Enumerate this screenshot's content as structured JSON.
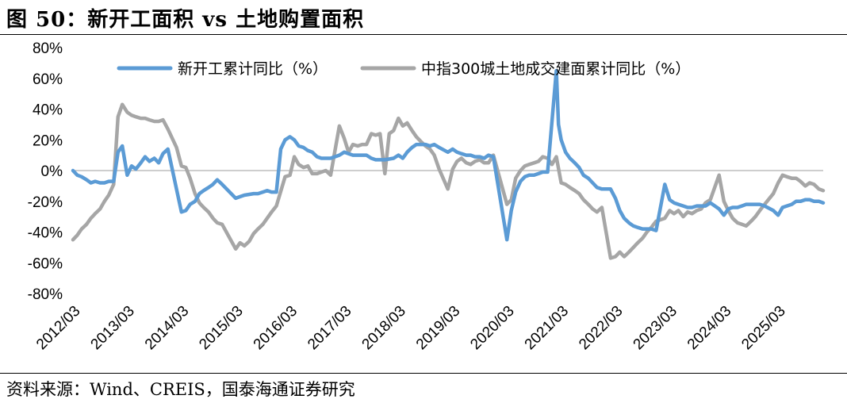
{
  "title": "图 50：新开工面积 vs 土地购置面积",
  "source": "资料来源：Wind、CREIS，国泰海通证券研究",
  "chart_data": {
    "type": "line",
    "y_axis": {
      "min": -80,
      "max": 80,
      "step": 20,
      "unit": "%",
      "tick_labels": [
        "80%",
        "60%",
        "40%",
        "20%",
        "0%",
        "-20%",
        "-40%",
        "-60%",
        "-80%"
      ]
    },
    "x_axis": {
      "tick_labels": [
        "2012/03",
        "2013/03",
        "2014/03",
        "2015/03",
        "2016/03",
        "2017/03",
        "2018/03",
        "2019/03",
        "2020/03",
        "2021/03",
        "2022/03",
        "2023/03",
        "2024/03",
        "2025/03"
      ]
    },
    "legend_position": "top",
    "series": [
      {
        "name": "新开工累计同比（%）",
        "color": "#5b9bd5",
        "points": [
          [
            2012.17,
            0
          ],
          [
            2012.25,
            -3
          ],
          [
            2012.33,
            -4
          ],
          [
            2012.42,
            -6
          ],
          [
            2012.5,
            -8
          ],
          [
            2012.58,
            -7
          ],
          [
            2012.67,
            -8
          ],
          [
            2012.75,
            -8
          ],
          [
            2012.83,
            -7
          ],
          [
            2012.92,
            -7
          ],
          [
            2013.0,
            12
          ],
          [
            2013.08,
            16
          ],
          [
            2013.17,
            -3
          ],
          [
            2013.25,
            3
          ],
          [
            2013.33,
            1
          ],
          [
            2013.42,
            5
          ],
          [
            2013.5,
            9
          ],
          [
            2013.58,
            6
          ],
          [
            2013.67,
            8
          ],
          [
            2013.75,
            5
          ],
          [
            2013.83,
            11
          ],
          [
            2013.92,
            14
          ],
          [
            2014.17,
            -27
          ],
          [
            2014.25,
            -26
          ],
          [
            2014.33,
            -22
          ],
          [
            2014.42,
            -20
          ],
          [
            2014.5,
            -15
          ],
          [
            2014.58,
            -13
          ],
          [
            2014.67,
            -11
          ],
          [
            2014.75,
            -9
          ],
          [
            2014.83,
            -6
          ],
          [
            2014.92,
            -9
          ],
          [
            2015.17,
            -18
          ],
          [
            2015.25,
            -17
          ],
          [
            2015.33,
            -16
          ],
          [
            2015.5,
            -15
          ],
          [
            2015.58,
            -15
          ],
          [
            2015.67,
            -14
          ],
          [
            2015.75,
            -13
          ],
          [
            2015.83,
            -14
          ],
          [
            2015.92,
            -14
          ],
          [
            2016.0,
            14
          ],
          [
            2016.08,
            20
          ],
          [
            2016.17,
            22
          ],
          [
            2016.25,
            20
          ],
          [
            2016.33,
            16
          ],
          [
            2016.42,
            15
          ],
          [
            2016.5,
            13
          ],
          [
            2016.58,
            12
          ],
          [
            2016.67,
            9
          ],
          [
            2016.75,
            8
          ],
          [
            2016.83,
            8
          ],
          [
            2016.92,
            8
          ],
          [
            2017.08,
            10
          ],
          [
            2017.17,
            12
          ],
          [
            2017.25,
            11
          ],
          [
            2017.33,
            10
          ],
          [
            2017.5,
            10
          ],
          [
            2017.58,
            10
          ],
          [
            2017.67,
            8
          ],
          [
            2017.75,
            7
          ],
          [
            2017.83,
            7
          ],
          [
            2017.92,
            7
          ],
          [
            2018.08,
            8
          ],
          [
            2018.17,
            10
          ],
          [
            2018.25,
            8
          ],
          [
            2018.33,
            12
          ],
          [
            2018.42,
            15
          ],
          [
            2018.5,
            17
          ],
          [
            2018.58,
            17
          ],
          [
            2018.67,
            17
          ],
          [
            2018.75,
            16
          ],
          [
            2018.83,
            17
          ],
          [
            2018.92,
            15
          ],
          [
            2019.08,
            12
          ],
          [
            2019.17,
            14
          ],
          [
            2019.25,
            12
          ],
          [
            2019.33,
            11
          ],
          [
            2019.42,
            10
          ],
          [
            2019.5,
            10
          ],
          [
            2019.58,
            9
          ],
          [
            2019.67,
            9
          ],
          [
            2019.75,
            8
          ],
          [
            2019.83,
            10
          ],
          [
            2019.92,
            9
          ],
          [
            2020.17,
            -45
          ],
          [
            2020.25,
            -26
          ],
          [
            2020.33,
            -14
          ],
          [
            2020.42,
            -7
          ],
          [
            2020.5,
            -4
          ],
          [
            2020.58,
            -3
          ],
          [
            2020.67,
            -3
          ],
          [
            2020.75,
            -2
          ],
          [
            2020.83,
            -1
          ],
          [
            2020.92,
            -1
          ],
          [
            2021.08,
            65
          ],
          [
            2021.12,
            30
          ],
          [
            2021.17,
            20
          ],
          [
            2021.25,
            12
          ],
          [
            2021.33,
            8
          ],
          [
            2021.42,
            5
          ],
          [
            2021.5,
            2
          ],
          [
            2021.58,
            -3
          ],
          [
            2021.67,
            -5
          ],
          [
            2021.75,
            -8
          ],
          [
            2021.83,
            -11
          ],
          [
            2021.92,
            -12
          ],
          [
            2022.08,
            -12
          ],
          [
            2022.17,
            -18
          ],
          [
            2022.25,
            -26
          ],
          [
            2022.33,
            -31
          ],
          [
            2022.42,
            -34
          ],
          [
            2022.5,
            -36
          ],
          [
            2022.58,
            -37
          ],
          [
            2022.67,
            -38
          ],
          [
            2022.75,
            -38
          ],
          [
            2022.83,
            -38
          ],
          [
            2022.92,
            -39
          ],
          [
            2023.08,
            -9
          ],
          [
            2023.17,
            -19
          ],
          [
            2023.25,
            -21
          ],
          [
            2023.33,
            -22
          ],
          [
            2023.42,
            -23
          ],
          [
            2023.5,
            -24
          ],
          [
            2023.58,
            -24
          ],
          [
            2023.67,
            -23
          ],
          [
            2023.75,
            -23
          ],
          [
            2023.83,
            -23
          ],
          [
            2023.92,
            -21
          ],
          [
            2024.08,
            -25
          ],
          [
            2024.17,
            -29
          ],
          [
            2024.25,
            -25
          ],
          [
            2024.33,
            -24
          ],
          [
            2024.42,
            -24
          ],
          [
            2024.5,
            -23
          ],
          [
            2024.58,
            -22
          ],
          [
            2024.67,
            -22
          ],
          [
            2024.75,
            -22
          ],
          [
            2024.83,
            -22
          ],
          [
            2024.92,
            -23
          ],
          [
            2025.08,
            -26
          ],
          [
            2025.17,
            -29
          ],
          [
            2025.25,
            -24
          ],
          [
            2025.33,
            -23
          ],
          [
            2025.42,
            -22
          ],
          [
            2025.5,
            -20
          ],
          [
            2025.58,
            -20
          ],
          [
            2025.67,
            -19
          ],
          [
            2025.75,
            -19
          ],
          [
            2025.83,
            -20
          ],
          [
            2025.92,
            -20
          ],
          [
            2026.0,
            -21
          ]
        ]
      },
      {
        "name": "中指300城土地成交建面累计同比（%）",
        "color": "#a6a6a6",
        "points": [
          [
            2012.17,
            -45
          ],
          [
            2012.25,
            -42
          ],
          [
            2012.33,
            -38
          ],
          [
            2012.42,
            -35
          ],
          [
            2012.5,
            -31
          ],
          [
            2012.58,
            -28
          ],
          [
            2012.67,
            -25
          ],
          [
            2012.75,
            -20
          ],
          [
            2012.83,
            -16
          ],
          [
            2012.92,
            -9
          ],
          [
            2013.0,
            35
          ],
          [
            2013.08,
            43
          ],
          [
            2013.17,
            38
          ],
          [
            2013.25,
            36
          ],
          [
            2013.33,
            35
          ],
          [
            2013.42,
            34
          ],
          [
            2013.5,
            34
          ],
          [
            2013.58,
            33
          ],
          [
            2013.67,
            32
          ],
          [
            2013.75,
            32
          ],
          [
            2013.83,
            33
          ],
          [
            2013.92,
            27
          ],
          [
            2014.08,
            15
          ],
          [
            2014.17,
            3
          ],
          [
            2014.25,
            2
          ],
          [
            2014.33,
            -5
          ],
          [
            2014.42,
            -15
          ],
          [
            2014.5,
            -21
          ],
          [
            2014.58,
            -24
          ],
          [
            2014.67,
            -27
          ],
          [
            2014.75,
            -31
          ],
          [
            2014.83,
            -34
          ],
          [
            2014.92,
            -35
          ],
          [
            2015.17,
            -51
          ],
          [
            2015.25,
            -47
          ],
          [
            2015.33,
            -49
          ],
          [
            2015.42,
            -46
          ],
          [
            2015.5,
            -41
          ],
          [
            2015.58,
            -38
          ],
          [
            2015.67,
            -35
          ],
          [
            2015.75,
            -31
          ],
          [
            2015.83,
            -27
          ],
          [
            2015.92,
            -23
          ],
          [
            2016.08,
            -4
          ],
          [
            2016.17,
            -3
          ],
          [
            2016.25,
            9
          ],
          [
            2016.33,
            4
          ],
          [
            2016.42,
            2
          ],
          [
            2016.5,
            3
          ],
          [
            2016.58,
            -2
          ],
          [
            2016.67,
            -2
          ],
          [
            2016.75,
            -1
          ],
          [
            2016.83,
            0
          ],
          [
            2016.92,
            -3
          ],
          [
            2017.08,
            29
          ],
          [
            2017.17,
            21
          ],
          [
            2017.25,
            12
          ],
          [
            2017.33,
            17
          ],
          [
            2017.42,
            16
          ],
          [
            2017.5,
            17
          ],
          [
            2017.58,
            17
          ],
          [
            2017.67,
            24
          ],
          [
            2017.75,
            23
          ],
          [
            2017.83,
            24
          ],
          [
            2017.92,
            -2
          ],
          [
            2018.0,
            24
          ],
          [
            2018.08,
            26
          ],
          [
            2018.17,
            34
          ],
          [
            2018.25,
            29
          ],
          [
            2018.33,
            31
          ],
          [
            2018.42,
            26
          ],
          [
            2018.5,
            22
          ],
          [
            2018.58,
            19
          ],
          [
            2018.67,
            16
          ],
          [
            2018.75,
            14
          ],
          [
            2018.83,
            10
          ],
          [
            2018.92,
            1
          ],
          [
            2019.08,
            -12
          ],
          [
            2019.17,
            1
          ],
          [
            2019.25,
            6
          ],
          [
            2019.33,
            8
          ],
          [
            2019.42,
            5
          ],
          [
            2019.5,
            4
          ],
          [
            2019.58,
            6
          ],
          [
            2019.67,
            7
          ],
          [
            2019.75,
            5
          ],
          [
            2019.83,
            5
          ],
          [
            2019.92,
            10
          ],
          [
            2020.17,
            -22
          ],
          [
            2020.25,
            -19
          ],
          [
            2020.33,
            -5
          ],
          [
            2020.42,
            0
          ],
          [
            2020.5,
            3
          ],
          [
            2020.58,
            4
          ],
          [
            2020.67,
            5
          ],
          [
            2020.75,
            6
          ],
          [
            2020.83,
            9
          ],
          [
            2020.92,
            8
          ],
          [
            2021.0,
            4
          ],
          [
            2021.08,
            9
          ],
          [
            2021.17,
            -8
          ],
          [
            2021.25,
            -9
          ],
          [
            2021.33,
            -11
          ],
          [
            2021.42,
            -13
          ],
          [
            2021.5,
            -15
          ],
          [
            2021.58,
            -19
          ],
          [
            2021.67,
            -22
          ],
          [
            2021.75,
            -25
          ],
          [
            2021.83,
            -27
          ],
          [
            2021.92,
            -24
          ],
          [
            2022.08,
            -57
          ],
          [
            2022.17,
            -56
          ],
          [
            2022.25,
            -53
          ],
          [
            2022.33,
            -56
          ],
          [
            2022.42,
            -53
          ],
          [
            2022.5,
            -50
          ],
          [
            2022.58,
            -47
          ],
          [
            2022.67,
            -44
          ],
          [
            2022.75,
            -40
          ],
          [
            2022.83,
            -37
          ],
          [
            2022.92,
            -33
          ],
          [
            2023.08,
            -31
          ],
          [
            2023.17,
            -26
          ],
          [
            2023.25,
            -28
          ],
          [
            2023.33,
            -26
          ],
          [
            2023.42,
            -30
          ],
          [
            2023.5,
            -27
          ],
          [
            2023.58,
            -28
          ],
          [
            2023.67,
            -26
          ],
          [
            2023.75,
            -25
          ],
          [
            2023.83,
            -21
          ],
          [
            2023.92,
            -19
          ],
          [
            2024.08,
            -3
          ],
          [
            2024.17,
            -20
          ],
          [
            2024.25,
            -26
          ],
          [
            2024.33,
            -31
          ],
          [
            2024.42,
            -34
          ],
          [
            2024.5,
            -35
          ],
          [
            2024.58,
            -36
          ],
          [
            2024.67,
            -33
          ],
          [
            2024.75,
            -30
          ],
          [
            2024.83,
            -26
          ],
          [
            2024.92,
            -22
          ],
          [
            2025.08,
            -15
          ],
          [
            2025.17,
            -8
          ],
          [
            2025.25,
            -3
          ],
          [
            2025.33,
            -4
          ],
          [
            2025.42,
            -5
          ],
          [
            2025.5,
            -5
          ],
          [
            2025.58,
            -7
          ],
          [
            2025.67,
            -10
          ],
          [
            2025.75,
            -8
          ],
          [
            2025.83,
            -9
          ],
          [
            2025.92,
            -12
          ],
          [
            2026.0,
            -13
          ]
        ]
      }
    ]
  }
}
